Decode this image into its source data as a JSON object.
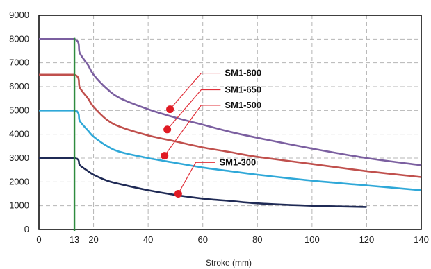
{
  "chart_data": {
    "type": "line",
    "xlabel": "Stroke (mm)",
    "ylabel": "",
    "xlim": [
      0,
      140
    ],
    "ylim": [
      0,
      9000
    ],
    "x_ticks": [
      0,
      13,
      20,
      40,
      60,
      80,
      100,
      120,
      140
    ],
    "y_ticks": [
      0,
      1000,
      2000,
      3000,
      4000,
      5000,
      6000,
      7000,
      8000,
      9000
    ],
    "grid": true,
    "vertical_marker": {
      "x": 13,
      "color": "#2e8b3e"
    },
    "series": [
      {
        "name": "SM1-800",
        "color": "#7b5fa0",
        "x": [
          0,
          13,
          15,
          18,
          20,
          25,
          30,
          40,
          50,
          60,
          70,
          80,
          100,
          120,
          140
        ],
        "y": [
          8000,
          8000,
          7400,
          6900,
          6500,
          5900,
          5500,
          5050,
          4700,
          4400,
          4100,
          3850,
          3400,
          3000,
          2700
        ]
      },
      {
        "name": "SM1-650",
        "color": "#c0504d",
        "x": [
          0,
          13,
          15,
          18,
          20,
          25,
          30,
          40,
          50,
          60,
          70,
          80,
          100,
          120,
          140
        ],
        "y": [
          6500,
          6500,
          5950,
          5500,
          5150,
          4600,
          4300,
          3950,
          3700,
          3450,
          3250,
          3050,
          2750,
          2450,
          2200
        ]
      },
      {
        "name": "SM1-500",
        "color": "#2fa8d8",
        "x": [
          0,
          13,
          15,
          18,
          20,
          25,
          30,
          40,
          50,
          60,
          70,
          80,
          100,
          120,
          140
        ],
        "y": [
          5000,
          5000,
          4550,
          4150,
          3900,
          3500,
          3250,
          3000,
          2800,
          2600,
          2450,
          2300,
          2050,
          1850,
          1650
        ]
      },
      {
        "name": "SM1-300",
        "color": "#1f2a55",
        "x": [
          0,
          13,
          15,
          18,
          20,
          25,
          30,
          40,
          50,
          60,
          70,
          80,
          100,
          120
        ],
        "y": [
          3000,
          3000,
          2700,
          2450,
          2300,
          2050,
          1900,
          1650,
          1450,
          1300,
          1200,
          1100,
          1000,
          950
        ]
      }
    ],
    "annotations": [
      {
        "label": "SM1-800",
        "point": [
          48,
          5050
        ],
        "label_at": [
          65,
          6450
        ]
      },
      {
        "label": "SM1-650",
        "point": [
          47,
          4200
        ],
        "label_at": [
          65,
          5750
        ]
      },
      {
        "label": "SM1-500",
        "point": [
          46,
          3100
        ],
        "label_at": [
          65,
          5100
        ]
      },
      {
        "label": "SM1-300",
        "point": [
          51,
          1500
        ],
        "label_at": [
          63,
          2700
        ]
      }
    ]
  }
}
